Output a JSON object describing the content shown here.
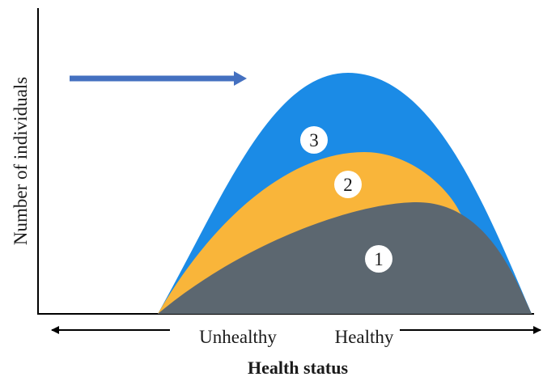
{
  "chart_data": {
    "type": "area",
    "ylabel": "Number of individuals",
    "xlabel": "Health status",
    "x_left_label": "Unhealthy",
    "x_right_label": "Healthy",
    "series": [
      {
        "label": "3",
        "color": "#1b8be6"
      },
      {
        "label": "2",
        "color": "#f9b53a"
      },
      {
        "label": "1",
        "color": "#5c6770"
      }
    ],
    "shift_arrow_color": "#4470c0",
    "axis_color": "#000000"
  }
}
